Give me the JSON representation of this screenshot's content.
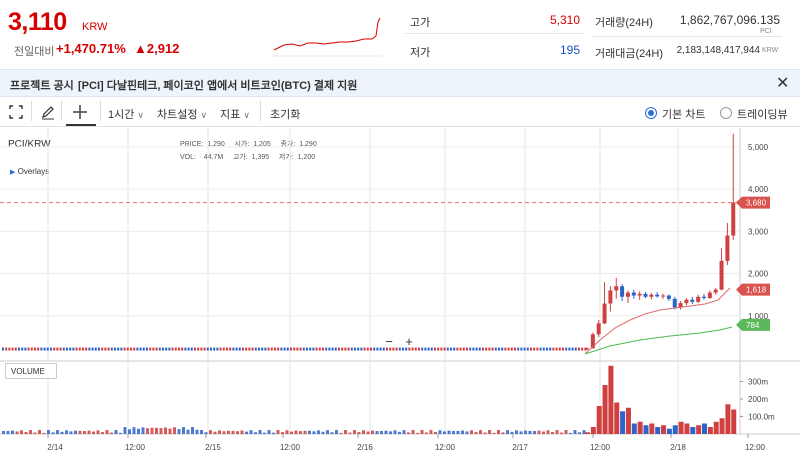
{
  "header": {
    "price": "3,110",
    "price_unit": "KRW",
    "change_label": "전일대비",
    "change_pct": "+1,470.71%",
    "change_amt": "▲2,912",
    "high_label": "고가",
    "high_value": "5,310",
    "low_label": "저가",
    "low_value": "195",
    "volume_label": "거래량(24H)",
    "volume_value": "1,862,767,096.135",
    "volume_unit": "PCI",
    "amount_label": "거래대금(24H)",
    "amount_value": "2,183,148,417,944",
    "amount_unit": "KRW",
    "colors": {
      "up": "#d60000",
      "down": "#1a55c4"
    }
  },
  "notice": {
    "label": "프로젝트 공시",
    "text": "[PCI] 다날핀테크, 페이코인 앱에서 비트코인(BTC) 결제 지원"
  },
  "toolbar": {
    "interval": "1시간",
    "chart_settings": "차트설정",
    "indicators": "지표",
    "reset": "초기화",
    "basic_chart": "기본 차트",
    "tradingview": "트레이딩뷰"
  },
  "chart": {
    "symbol": "PCI/KRW",
    "overlays": "Overlays",
    "volume_title": "VOLUME",
    "info": {
      "price_label": "PRICE:",
      "price": "1,290",
      "open_label": "시가:",
      "open": "1,205",
      "close_label": "종가:",
      "close": "1,290",
      "vol_label": "VOL:",
      "vol": "44.7M",
      "high_label": "고가:",
      "high": "1,395",
      "low_label": "저가:",
      "low": "1,200"
    },
    "badges": {
      "current": "3,680",
      "ma_short": "1,618",
      "ma_long": "784"
    },
    "zoom_minus": "−",
    "zoom_plus": "+"
  },
  "chart_data": {
    "type": "candlestick",
    "x_ticks": [
      "2/14",
      "12:00",
      "2/15",
      "12:00",
      "2/16",
      "12:00",
      "2/17",
      "12:00",
      "2/18",
      "12:00"
    ],
    "y_ticks": [
      "1,000",
      "2,000",
      "3,000",
      "4,000",
      "5,000"
    ],
    "volume_ticks": [
      "100.0m",
      "200m",
      "300m"
    ],
    "ylim": [
      0,
      5400
    ],
    "current_price_line": 3680,
    "candles_recent": [
      {
        "o": 200,
        "h": 250,
        "l": 190,
        "c": 230
      },
      {
        "o": 230,
        "h": 600,
        "l": 220,
        "c": 560
      },
      {
        "o": 560,
        "h": 900,
        "l": 500,
        "c": 820
      },
      {
        "o": 820,
        "h": 1800,
        "l": 800,
        "c": 1290
      },
      {
        "o": 1290,
        "h": 1700,
        "l": 1100,
        "c": 1600
      },
      {
        "o": 1600,
        "h": 1900,
        "l": 1400,
        "c": 1700
      },
      {
        "o": 1700,
        "h": 1750,
        "l": 1350,
        "c": 1450
      },
      {
        "o": 1450,
        "h": 1600,
        "l": 1300,
        "c": 1550
      },
      {
        "o": 1550,
        "h": 1620,
        "l": 1400,
        "c": 1480
      },
      {
        "o": 1480,
        "h": 1580,
        "l": 1380,
        "c": 1520
      },
      {
        "o": 1520,
        "h": 1560,
        "l": 1420,
        "c": 1450
      },
      {
        "o": 1450,
        "h": 1540,
        "l": 1390,
        "c": 1500
      },
      {
        "o": 1500,
        "h": 1560,
        "l": 1430,
        "c": 1460
      },
      {
        "o": 1460,
        "h": 1520,
        "l": 1400,
        "c": 1480
      },
      {
        "o": 1480,
        "h": 1500,
        "l": 1350,
        "c": 1400
      },
      {
        "o": 1400,
        "h": 1450,
        "l": 1150,
        "c": 1200
      },
      {
        "o": 1200,
        "h": 1350,
        "l": 1150,
        "c": 1300
      },
      {
        "o": 1300,
        "h": 1420,
        "l": 1250,
        "c": 1380
      },
      {
        "o": 1380,
        "h": 1450,
        "l": 1280,
        "c": 1330
      },
      {
        "o": 1330,
        "h": 1500,
        "l": 1300,
        "c": 1450
      },
      {
        "o": 1450,
        "h": 1520,
        "l": 1380,
        "c": 1420
      },
      {
        "o": 1420,
        "h": 1600,
        "l": 1400,
        "c": 1550
      },
      {
        "o": 1550,
        "h": 1650,
        "l": 1500,
        "c": 1620
      },
      {
        "o": 1620,
        "h": 2600,
        "l": 1600,
        "c": 2300
      },
      {
        "o": 2300,
        "h": 3200,
        "l": 2200,
        "c": 2900
      },
      {
        "o": 2900,
        "h": 5310,
        "l": 2800,
        "c": 3680
      }
    ],
    "volumes_recent": [
      10,
      40,
      160,
      280,
      390,
      180,
      130,
      150,
      60,
      70,
      50,
      60,
      40,
      50,
      30,
      50,
      70,
      60,
      40,
      50,
      60,
      40,
      70,
      90,
      170,
      140
    ]
  }
}
